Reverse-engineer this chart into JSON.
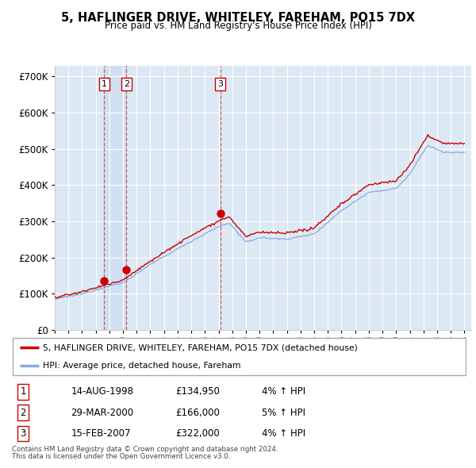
{
  "title": "5, HAFLINGER DRIVE, WHITELEY, FAREHAM, PO15 7DX",
  "subtitle": "Price paid vs. HM Land Registry's House Price Index (HPI)",
  "legend_line1": "5, HAFLINGER DRIVE, WHITELEY, FAREHAM, PO15 7DX (detached house)",
  "legend_line2": "HPI: Average price, detached house, Fareham",
  "footer1": "Contains HM Land Registry data © Crown copyright and database right 2024.",
  "footer2": "This data is licensed under the Open Government Licence v3.0.",
  "transactions": [
    {
      "num": 1,
      "date": "14-AUG-1998",
      "price": "£134,950",
      "hpi": "4% ↑ HPI",
      "year_x": 1998.62
    },
    {
      "num": 2,
      "date": "29-MAR-2000",
      "price": "£166,000",
      "hpi": "5% ↑ HPI",
      "year_x": 2000.24
    },
    {
      "num": 3,
      "date": "15-FEB-2007",
      "price": "£322,000",
      "hpi": "4% ↑ HPI",
      "year_x": 2007.12
    }
  ],
  "transaction_values": [
    134950,
    166000,
    322000
  ],
  "background_color": "#dce9f5",
  "plot_bg": "#dce9f5",
  "line_color_property": "#cc0000",
  "line_color_hpi": "#88aadd",
  "ylim": [
    0,
    730000
  ],
  "xlim_start": 1995,
  "xlim_end": 2025.5,
  "hpi_color_band": "#c8daf0"
}
